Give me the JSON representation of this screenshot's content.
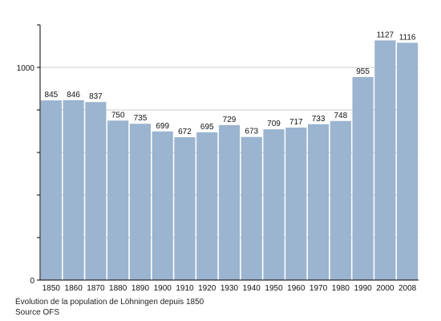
{
  "chart_data": {
    "type": "bar",
    "categories": [
      "1850",
      "1860",
      "1870",
      "1880",
      "1890",
      "1900",
      "1910",
      "1920",
      "1930",
      "1940",
      "1950",
      "1960",
      "1970",
      "1980",
      "1990",
      "2000",
      "2008"
    ],
    "values": [
      845,
      846,
      837,
      750,
      735,
      699,
      672,
      695,
      729,
      673,
      709,
      717,
      733,
      748,
      955,
      1127,
      1116
    ],
    "title": "",
    "xlabel": "",
    "ylabel": "",
    "ylim": [
      0,
      1200
    ],
    "yticks": [
      0,
      1000
    ],
    "y_tick_labels": [
      "0",
      "1000"
    ],
    "grid": true,
    "legend": "none",
    "bar_color": "#9bb4cf",
    "grid_color": "#bdbdbd",
    "axis_color": "#000000"
  },
  "caption": {
    "line1": "Évolution de la population de Löhningen depuis 1850",
    "line2": "Source OFS"
  }
}
